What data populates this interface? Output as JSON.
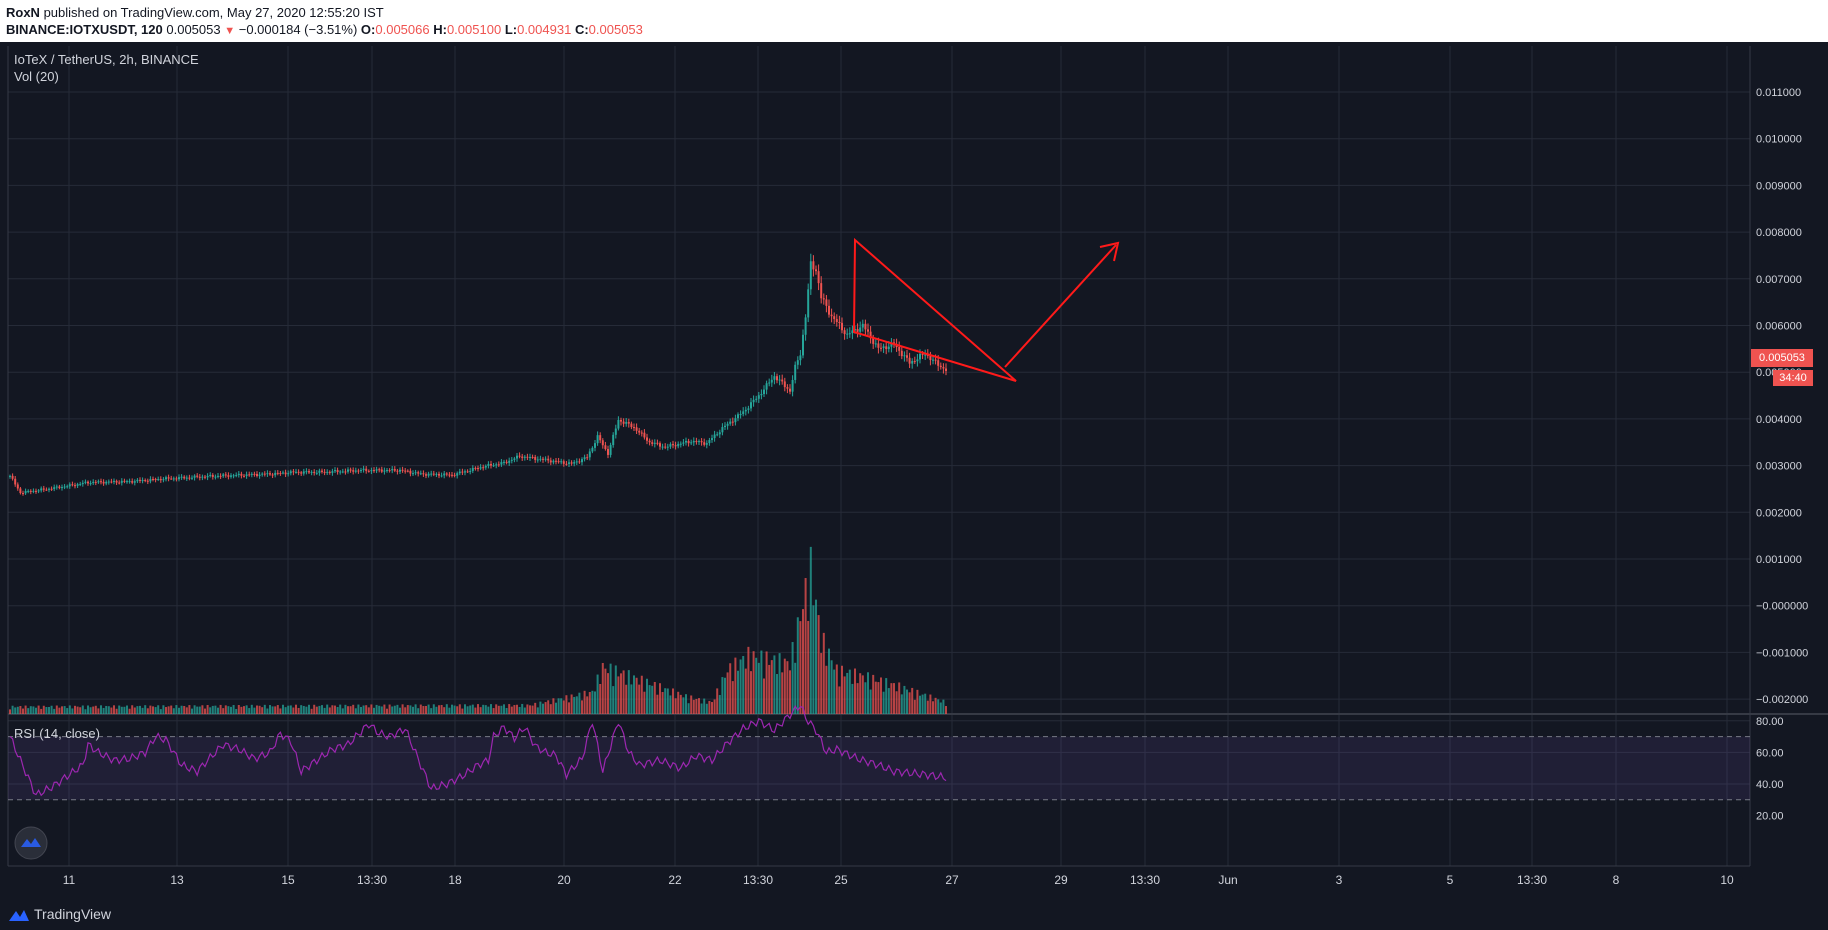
{
  "header": {
    "author": "RoxN",
    "published": "published on TradingView.com, May 27, 2020 12:55:20 IST",
    "symbol": "BINANCE:IOTXUSDT, 120",
    "last": "0.005053",
    "arrow": "▼",
    "change": "−0.000184 (−3.51%)",
    "o_label": "O:",
    "o_val": "0.005066",
    "h_label": "H:",
    "h_val": "0.005100",
    "l_label": "L:",
    "l_val": "0.004931",
    "c_label": "C:",
    "c_val": "0.005053"
  },
  "legend": {
    "title": "IoTeX / TetherUS, 2h, BINANCE",
    "volume": "Vol (20)",
    "rsi": "RSI (14, close)"
  },
  "price_label": "0.005053",
  "timer": "34:40",
  "footer": {
    "brand": "TradingView"
  },
  "colors": {
    "bg": "#131722",
    "up": "#26a69a",
    "down": "#ef5350",
    "rsi": "#9c27b0",
    "pattern": "#ff1a1a"
  },
  "chart_data": [
    {
      "type": "candlestick",
      "title": "IoTeX / TetherUS, 2h, BINANCE",
      "x_ticks": [
        "11",
        "13",
        "15",
        "13:30",
        "18",
        "20",
        "22",
        "13:30",
        "25",
        "27",
        "29",
        "13:30",
        "Jun",
        "3",
        "5",
        "13:30",
        "8",
        "10"
      ],
      "y_ticks": [
        "0.011000",
        "0.010000",
        "0.009000",
        "0.008000",
        "0.007000",
        "0.006000",
        "0.005000",
        "0.004000",
        "0.003000",
        "0.002000",
        "0.001000",
        "−0.000000",
        "−0.001000",
        "−0.002000"
      ],
      "ylim": [
        -0.0025,
        0.0115
      ],
      "grid": true,
      "close_anchors": [
        [
          0,
          0.00278
        ],
        [
          4,
          0.00242
        ],
        [
          12,
          0.00248
        ],
        [
          24,
          0.00258
        ],
        [
          30,
          0.00264
        ],
        [
          46,
          0.00266
        ],
        [
          60,
          0.00272
        ],
        [
          80,
          0.00278
        ],
        [
          100,
          0.00282
        ],
        [
          110,
          0.00286
        ],
        [
          120,
          0.00286
        ],
        [
          135,
          0.0029
        ],
        [
          150,
          0.0029
        ],
        [
          158,
          0.00282
        ],
        [
          170,
          0.0028
        ],
        [
          182,
          0.00298
        ],
        [
          190,
          0.00306
        ],
        [
          196,
          0.0032
        ],
        [
          206,
          0.00312
        ],
        [
          216,
          0.00304
        ],
        [
          222,
          0.00318
        ],
        [
          226,
          0.00362
        ],
        [
          230,
          0.00326
        ],
        [
          234,
          0.00398
        ],
        [
          240,
          0.00382
        ],
        [
          246,
          0.0035
        ],
        [
          252,
          0.0034
        ],
        [
          262,
          0.00352
        ],
        [
          268,
          0.00348
        ],
        [
          274,
          0.0038
        ],
        [
          282,
          0.00415
        ],
        [
          288,
          0.0045
        ],
        [
          294,
          0.00492
        ],
        [
          300,
          0.0046
        ],
        [
          302,
          0.0051
        ],
        [
          304,
          0.0054
        ],
        [
          306,
          0.0062
        ],
        [
          308,
          0.0073
        ],
        [
          310,
          0.0072
        ],
        [
          312,
          0.0066
        ],
        [
          316,
          0.0062
        ],
        [
          322,
          0.0058
        ],
        [
          328,
          0.006
        ],
        [
          334,
          0.0055
        ],
        [
          340,
          0.0056
        ],
        [
          346,
          0.0052
        ],
        [
          352,
          0.0054
        ],
        [
          356,
          0.0052
        ],
        [
          360,
          0.00505
        ]
      ],
      "current_price": 0.005053,
      "annotations": [
        "falling wedge (red triangle)",
        "red arrow pointing up-right"
      ]
    },
    {
      "type": "bar",
      "title": "Vol (20)",
      "note": "volume histogram, no scale shown",
      "relative_profile_anchors": [
        [
          0,
          0.05
        ],
        [
          200,
          0.06
        ],
        [
          224,
          0.15
        ],
        [
          228,
          0.32
        ],
        [
          232,
          0.3
        ],
        [
          260,
          0.12
        ],
        [
          270,
          0.08
        ],
        [
          276,
          0.3
        ],
        [
          284,
          0.4
        ],
        [
          300,
          0.35
        ],
        [
          308,
          1.0
        ],
        [
          312,
          0.52
        ],
        [
          318,
          0.3
        ],
        [
          330,
          0.25
        ],
        [
          340,
          0.2
        ],
        [
          360,
          0.08
        ]
      ]
    },
    {
      "type": "line",
      "title": "RSI (14, close)",
      "y_ticks": [
        "80.00",
        "60.00",
        "40.00",
        "20.00"
      ],
      "ylim": [
        20,
        92
      ],
      "bands": [
        30,
        70
      ],
      "values_anchors": [
        [
          0,
          70
        ],
        [
          4,
          55
        ],
        [
          10,
          33
        ],
        [
          16,
          38
        ],
        [
          22,
          45
        ],
        [
          28,
          52
        ],
        [
          30,
          65
        ],
        [
          34,
          60
        ],
        [
          40,
          55
        ],
        [
          46,
          56
        ],
        [
          52,
          60
        ],
        [
          56,
          70
        ],
        [
          60,
          68
        ],
        [
          66,
          52
        ],
        [
          72,
          48
        ],
        [
          76,
          55
        ],
        [
          82,
          65
        ],
        [
          88,
          62
        ],
        [
          94,
          56
        ],
        [
          100,
          60
        ],
        [
          104,
          72
        ],
        [
          108,
          67
        ],
        [
          112,
          48
        ],
        [
          118,
          55
        ],
        [
          124,
          62
        ],
        [
          130,
          65
        ],
        [
          138,
          78
        ],
        [
          142,
          72
        ],
        [
          146,
          70
        ],
        [
          152,
          75
        ],
        [
          158,
          52
        ],
        [
          162,
          37
        ],
        [
          168,
          40
        ],
        [
          174,
          45
        ],
        [
          180,
          52
        ],
        [
          184,
          55
        ],
        [
          186,
          70
        ],
        [
          190,
          76
        ],
        [
          194,
          69
        ],
        [
          198,
          76
        ],
        [
          202,
          64
        ],
        [
          206,
          60
        ],
        [
          210,
          58
        ],
        [
          214,
          46
        ],
        [
          220,
          56
        ],
        [
          224,
          80
        ],
        [
          228,
          48
        ],
        [
          234,
          80
        ],
        [
          238,
          60
        ],
        [
          242,
          52
        ],
        [
          250,
          55
        ],
        [
          258,
          50
        ],
        [
          264,
          58
        ],
        [
          270,
          55
        ],
        [
          276,
          66
        ],
        [
          282,
          75
        ],
        [
          288,
          80
        ],
        [
          294,
          74
        ],
        [
          300,
          84
        ],
        [
          304,
          90
        ],
        [
          306,
          82
        ],
        [
          310,
          74
        ],
        [
          314,
          60
        ],
        [
          318,
          62
        ],
        [
          326,
          56
        ],
        [
          334,
          52
        ],
        [
          340,
          48
        ],
        [
          346,
          47
        ],
        [
          352,
          46
        ],
        [
          360,
          44
        ]
      ]
    }
  ]
}
